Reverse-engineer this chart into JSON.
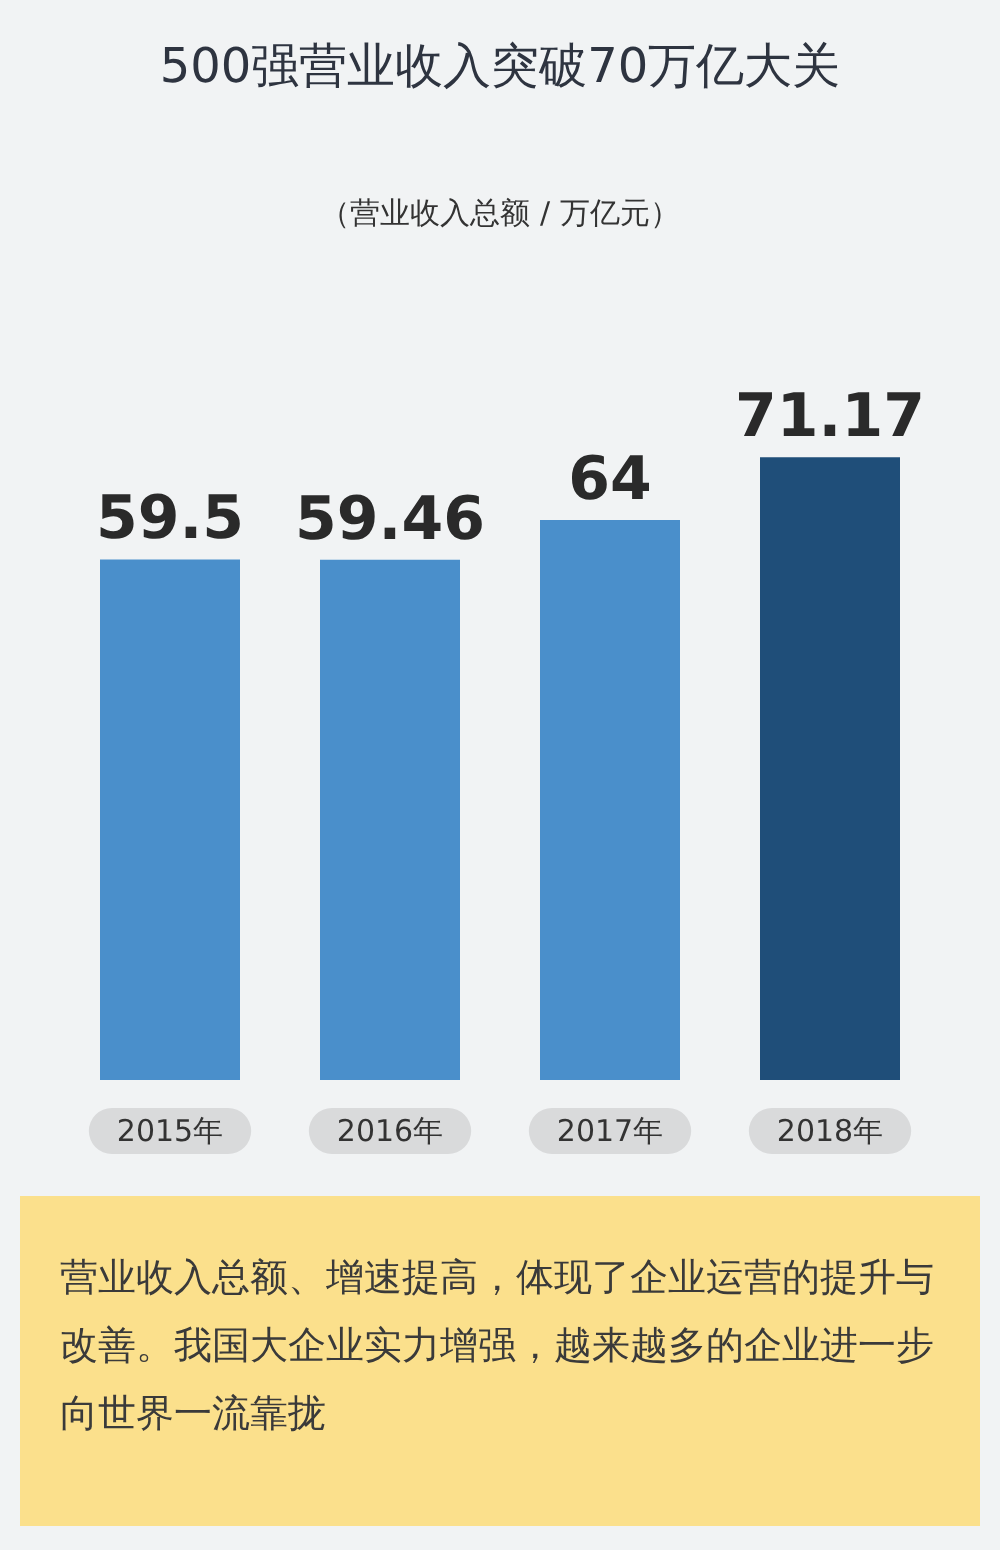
{
  "chart_data": {
    "type": "bar",
    "title": "500强营业收入突破70万亿大关",
    "subtitle": "（营业收入总额 / 万亿元）",
    "categories": [
      "2015年",
      "2016年",
      "2017年",
      "2018年"
    ],
    "values": [
      59.5,
      59.46,
      64,
      71.17
    ],
    "colors": [
      "#4a8fcb",
      "#4a8fcb",
      "#4a8fcb",
      "#1f4e79"
    ],
    "data_labels": true,
    "annotations": [
      "营业收入总额、增速提高，体现了企业运营的提升与改善。我国大企业实力增强，越来越多的企业进一步向世界一流靠拢"
    ]
  }
}
